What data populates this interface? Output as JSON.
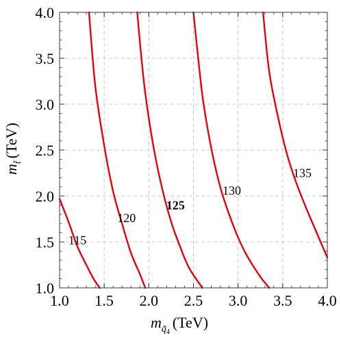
{
  "chart_data": {
    "type": "line",
    "title": "",
    "xlabel": {
      "main": "m",
      "sub": "q̃",
      "subsub": "4",
      "unit": "(TeV)"
    },
    "ylabel": {
      "main": "m",
      "sub": "t̃",
      "unit": "(TeV)"
    },
    "xlim": [
      1.0,
      4.0
    ],
    "ylim": [
      1.0,
      4.0
    ],
    "xticks": [
      "1.0",
      "1.5",
      "2.0",
      "2.5",
      "3.0",
      "3.5",
      "4.0"
    ],
    "yticks": [
      "1.0",
      "1.5",
      "2.0",
      "2.5",
      "3.0",
      "3.5",
      "4.0"
    ],
    "grid": true,
    "line_color": "#e8000b",
    "series": [
      {
        "label": "115",
        "bold": false,
        "label_at": [
          1.2,
          1.52
        ],
        "points": [
          [
            1.0,
            1.97
          ],
          [
            1.1,
            1.72
          ],
          [
            1.2,
            1.45
          ],
          [
            1.3,
            1.25
          ],
          [
            1.38,
            1.1
          ],
          [
            1.45,
            1.0
          ]
        ]
      },
      {
        "label": "120",
        "bold": false,
        "label_at": [
          1.75,
          1.76
        ],
        "points": [
          [
            1.33,
            4.0
          ],
          [
            1.4,
            3.2
          ],
          [
            1.5,
            2.55
          ],
          [
            1.6,
            2.05
          ],
          [
            1.7,
            1.7
          ],
          [
            1.8,
            1.38
          ],
          [
            1.9,
            1.15
          ],
          [
            1.96,
            1.0
          ]
        ]
      },
      {
        "label": "125",
        "bold": true,
        "label_at": [
          2.3,
          1.9
        ],
        "points": [
          [
            1.87,
            4.0
          ],
          [
            1.95,
            3.2
          ],
          [
            2.05,
            2.55
          ],
          [
            2.15,
            2.08
          ],
          [
            2.25,
            1.72
          ],
          [
            2.35,
            1.45
          ],
          [
            2.45,
            1.22
          ],
          [
            2.6,
            1.0
          ]
        ]
      },
      {
        "label": "130",
        "bold": false,
        "label_at": [
          2.93,
          2.06
        ],
        "points": [
          [
            2.5,
            4.0
          ],
          [
            2.6,
            3.1
          ],
          [
            2.7,
            2.52
          ],
          [
            2.8,
            2.1
          ],
          [
            2.9,
            1.8
          ],
          [
            3.0,
            1.55
          ],
          [
            3.1,
            1.35
          ],
          [
            3.25,
            1.12
          ],
          [
            3.35,
            1.0
          ]
        ]
      },
      {
        "label": "135",
        "bold": false,
        "label_at": [
          3.72,
          2.25
        ],
        "points": [
          [
            3.28,
            4.0
          ],
          [
            3.35,
            3.35
          ],
          [
            3.45,
            2.85
          ],
          [
            3.55,
            2.45
          ],
          [
            3.65,
            2.15
          ],
          [
            3.75,
            1.9
          ],
          [
            3.85,
            1.67
          ],
          [
            4.0,
            1.33
          ]
        ]
      }
    ]
  }
}
